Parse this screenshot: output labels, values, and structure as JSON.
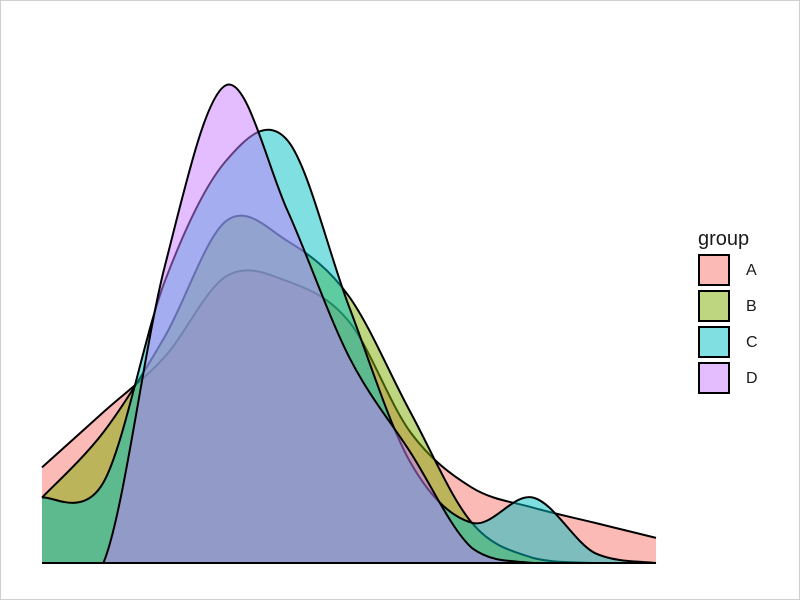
{
  "chart_data": {
    "type": "area",
    "subtype": "density",
    "title": "",
    "xlabel": "",
    "ylabel": "",
    "axes_visible": false,
    "grid": false,
    "legend_position": "right",
    "xlim": [
      0,
      100
    ],
    "ylim": [
      0,
      1.0
    ],
    "x": [
      0,
      10,
      20,
      30,
      40,
      50,
      60,
      70,
      80,
      90,
      100
    ],
    "legend": {
      "title": "group",
      "entries": [
        "A",
        "B",
        "C",
        "D"
      ]
    },
    "series": [
      {
        "name": "A",
        "color": "#F8766D",
        "fill_opacity": 0.5,
        "values": [
          0.19,
          0.3,
          0.41,
          0.57,
          0.56,
          0.48,
          0.26,
          0.15,
          0.11,
          0.08,
          0.05
        ]
      },
      {
        "name": "B",
        "color": "#7CAE00",
        "fill_opacity": 0.5,
        "values": [
          0.13,
          0.26,
          0.45,
          0.68,
          0.64,
          0.53,
          0.3,
          0.08,
          0.01,
          0.0,
          0.0
        ]
      },
      {
        "name": "C",
        "color": "#00BFC4",
        "fill_opacity": 0.5,
        "values": [
          0.13,
          0.16,
          0.56,
          0.8,
          0.84,
          0.51,
          0.2,
          0.08,
          0.13,
          0.02,
          0.0
        ]
      },
      {
        "name": "D",
        "color": "#C77CFF",
        "fill_opacity": 0.5,
        "values": [
          0.0,
          0.0,
          0.59,
          0.95,
          0.7,
          0.41,
          0.22,
          0.03,
          0.0,
          0.0,
          0.0
        ]
      }
    ]
  }
}
